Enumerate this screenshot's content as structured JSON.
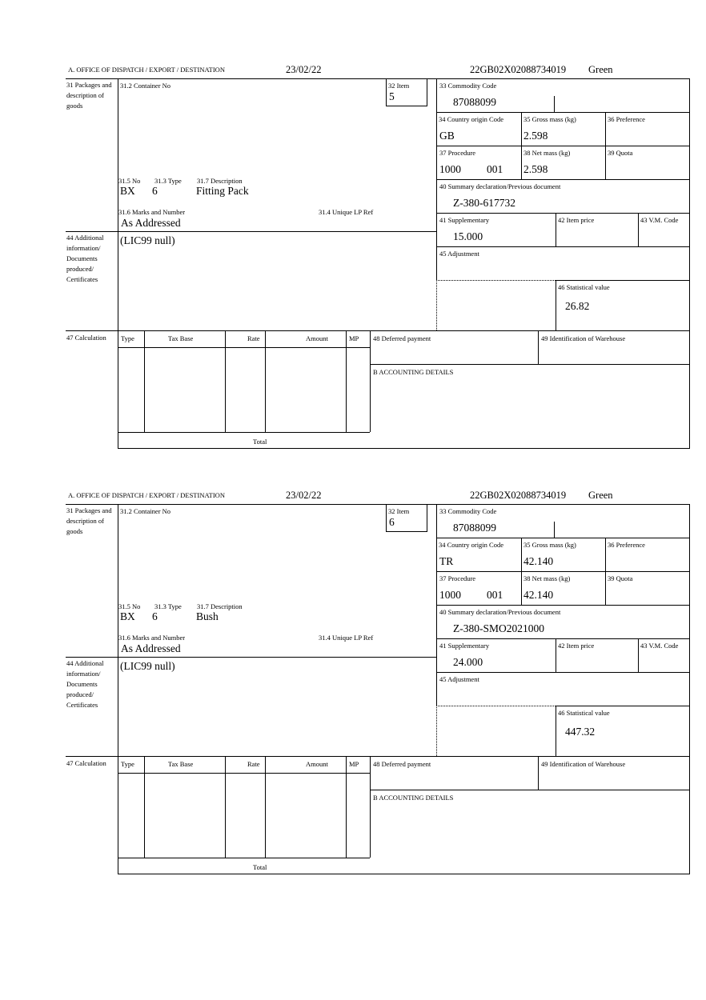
{
  "labels": {
    "office": "A. OFFICE OF DISPATCH / EXPORT / DESTINATION",
    "packages": "31 Packages and description of goods",
    "container_no": "31.2 Container No",
    "item": "32 Item",
    "commodity_code": "33 Commodity Code",
    "country_origin": "34 Country origin Code",
    "gross_mass": "35 Gross mass (kg)",
    "preference": "36 Preference",
    "procedure": "37 Procedure",
    "net_mass": "38 Net mass (kg)",
    "quota": "39 Quota",
    "summary_declaration": "40 Summary declaration/Previous document",
    "no": "31.5 No",
    "type": "31.3 Type",
    "description": "31.7 Description",
    "marks": "31.6 Marks and Number",
    "unique_lp_ref": "31.4 Unique LP Ref",
    "supplementary": "41 Supplementary",
    "item_price": "42 Item price",
    "vm_code": "43 V.M. Code",
    "additional_info": "44 Additional information/ Documents produced/ Certificates",
    "adjustment": "45 Adjustment",
    "statistical_value": "46 Statistical value",
    "calculation": "47 Calculation",
    "calc_type": "Type",
    "tax_base": "Tax Base",
    "rate": "Rate",
    "amount": "Amount",
    "mp": "MP",
    "deferred_payment": "48 Deferred payment",
    "warehouse": "49 Identification of Warehouse",
    "accounting": "B ACCOUNTING DETAILS",
    "total": "Total"
  },
  "forms": [
    {
      "date": "23/02/22",
      "reference": "22GB02X02088734019",
      "route": "Green",
      "item": "5",
      "commodity_code": "87088099",
      "country_origin": "GB",
      "gross_mass": "2.598",
      "procedure": "1000",
      "procedure_extra": "001",
      "net_mass": "2.598",
      "summary_declaration": "Z-380-617732",
      "pkg_no": "BX",
      "pkg_type": "6",
      "description": "Fitting Pack",
      "marks": "As Addressed",
      "supplementary": "15.000",
      "additional_info": "(LIC99 null)",
      "statistical_value": "26.82"
    },
    {
      "date": "23/02/22",
      "reference": "22GB02X02088734019",
      "route": "Green",
      "item": "6",
      "commodity_code": "87088099",
      "country_origin": "TR",
      "gross_mass": "42.140",
      "procedure": "1000",
      "procedure_extra": "001",
      "net_mass": "42.140",
      "summary_declaration": "Z-380-SMO2021000",
      "pkg_no": "BX",
      "pkg_type": "6",
      "description": "Bush",
      "marks": "As Addressed",
      "supplementary": "24.000",
      "additional_info": "(LIC99 null)",
      "statistical_value": "447.32"
    }
  ]
}
